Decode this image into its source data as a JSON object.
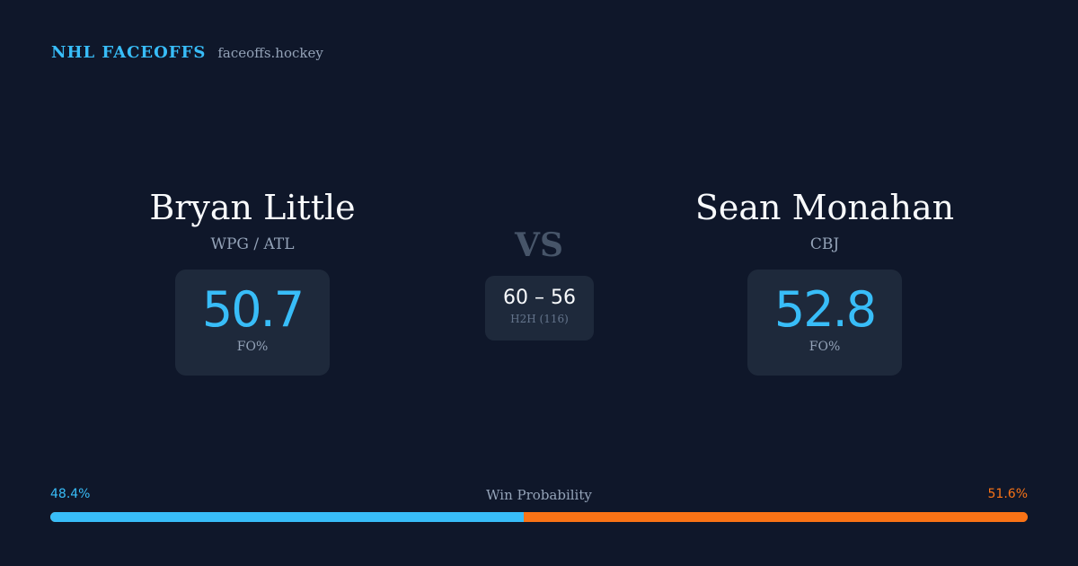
{
  "brand": {
    "name": "NHL FACEOFFS",
    "site": "faceoffs.hockey"
  },
  "player_left": {
    "name": "Bryan Little",
    "team": "WPG / ATL",
    "fo_value": "50.7",
    "fo_label": "FO%"
  },
  "player_right": {
    "name": "Sean Monahan",
    "team": "CBJ",
    "fo_value": "52.8",
    "fo_label": "FO%"
  },
  "versus": {
    "label": "VS",
    "h2h_score": "60 – 56",
    "h2h_label": "H2H (116)"
  },
  "win_probability": {
    "title": "Win Probability",
    "left_label": "48.4%",
    "right_label": "51.6%",
    "left_percent": 48.4,
    "right_percent": 51.6
  },
  "colors": {
    "background": "#0f172a",
    "card": "#1e293b",
    "accent_left": "#38bdf8",
    "accent_right": "#f97316"
  }
}
